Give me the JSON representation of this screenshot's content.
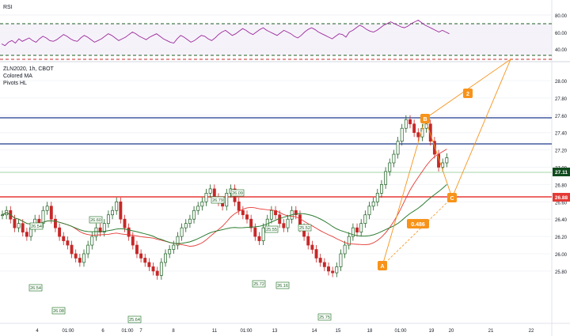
{
  "rsi": {
    "label": "RSI",
    "ticks": [
      "80.00",
      "60.00",
      "40.00"
    ]
  },
  "main": {
    "symbol_line": "ZLN2020, 1h, CBOT",
    "indicators": [
      "Colored MA",
      "Pivots HL"
    ],
    "price_ticks": [
      "28.00",
      "27.80",
      "27.60",
      "27.40",
      "27.20",
      "27.00",
      "26.80",
      "26.60",
      "26.40",
      "26.20",
      "26.00",
      "25.80"
    ],
    "last_price": "27.11",
    "red_level": "26.88",
    "pattern_labels": {
      "a": "A",
      "b": "B",
      "c": "C",
      "two": "2"
    },
    "ratio": "0.486",
    "pivot_labels": [
      "26.54",
      "26.60",
      "26.54",
      "26.79",
      "25.55",
      "25.52",
      "26.08",
      "25.64",
      "25.72",
      "26.16",
      "26.09",
      "25.75"
    ]
  },
  "time_axis": [
    "4",
    "01:00",
    "6",
    "01:00",
    "7",
    "8",
    "11",
    "01:00",
    "13",
    "14",
    "15",
    "18",
    "01:00",
    "19",
    "20",
    "21",
    "22"
  ],
  "colors": {
    "last_price": "#0f4b1d",
    "red_level": "#e53935",
    "blue_level": "#1e3a8a",
    "pattern": "#f7931a",
    "rsi": "#9b2a9b"
  }
}
